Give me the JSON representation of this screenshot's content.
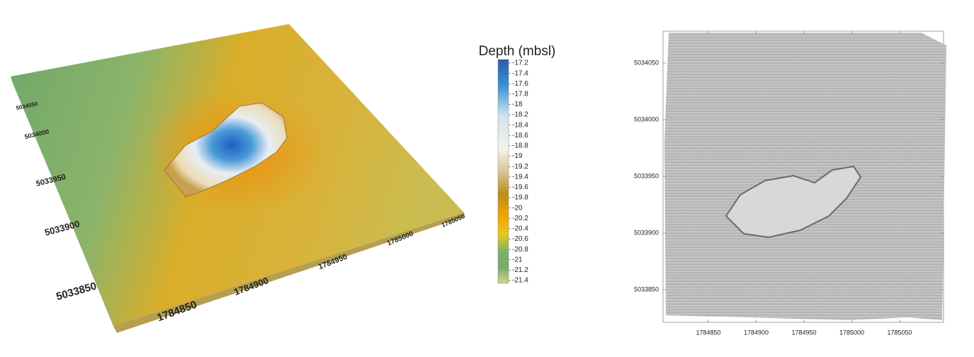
{
  "left_panel": {
    "northing_labels": [
      5034050,
      5034000,
      5033950,
      5033900,
      5033850
    ],
    "easting_labels": [
      1784850,
      1784900,
      1784950,
      1785000,
      1785050
    ]
  },
  "colorbar": {
    "title": "Depth (mbsl)",
    "ticks": [
      -17.2,
      -17.4,
      -17.6,
      -17.8,
      -18,
      -18.2,
      -18.4,
      -18.6,
      -18.8,
      -19,
      -19.2,
      -19.4,
      -19.6,
      -19.8,
      -20,
      -20.2,
      -20.4,
      -20.6,
      -20.8,
      -21,
      -21.2,
      -21.4
    ]
  },
  "right_panel": {
    "yticks": [
      5034050,
      5034000,
      5033950,
      5033900,
      5033850
    ],
    "xticks": [
      1784850,
      1784900,
      1784950,
      1785000,
      1785050
    ]
  }
}
